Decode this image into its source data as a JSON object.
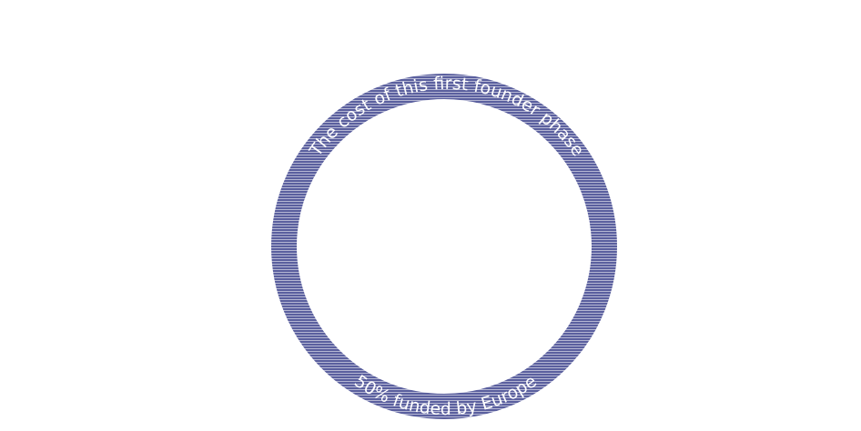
{
  "ring": {
    "top_text": "The cost of this first founder phase",
    "bottom_text": "50% funded by Europe",
    "color": "#5a5f9e",
    "stripe_color": "#ffffff"
  }
}
